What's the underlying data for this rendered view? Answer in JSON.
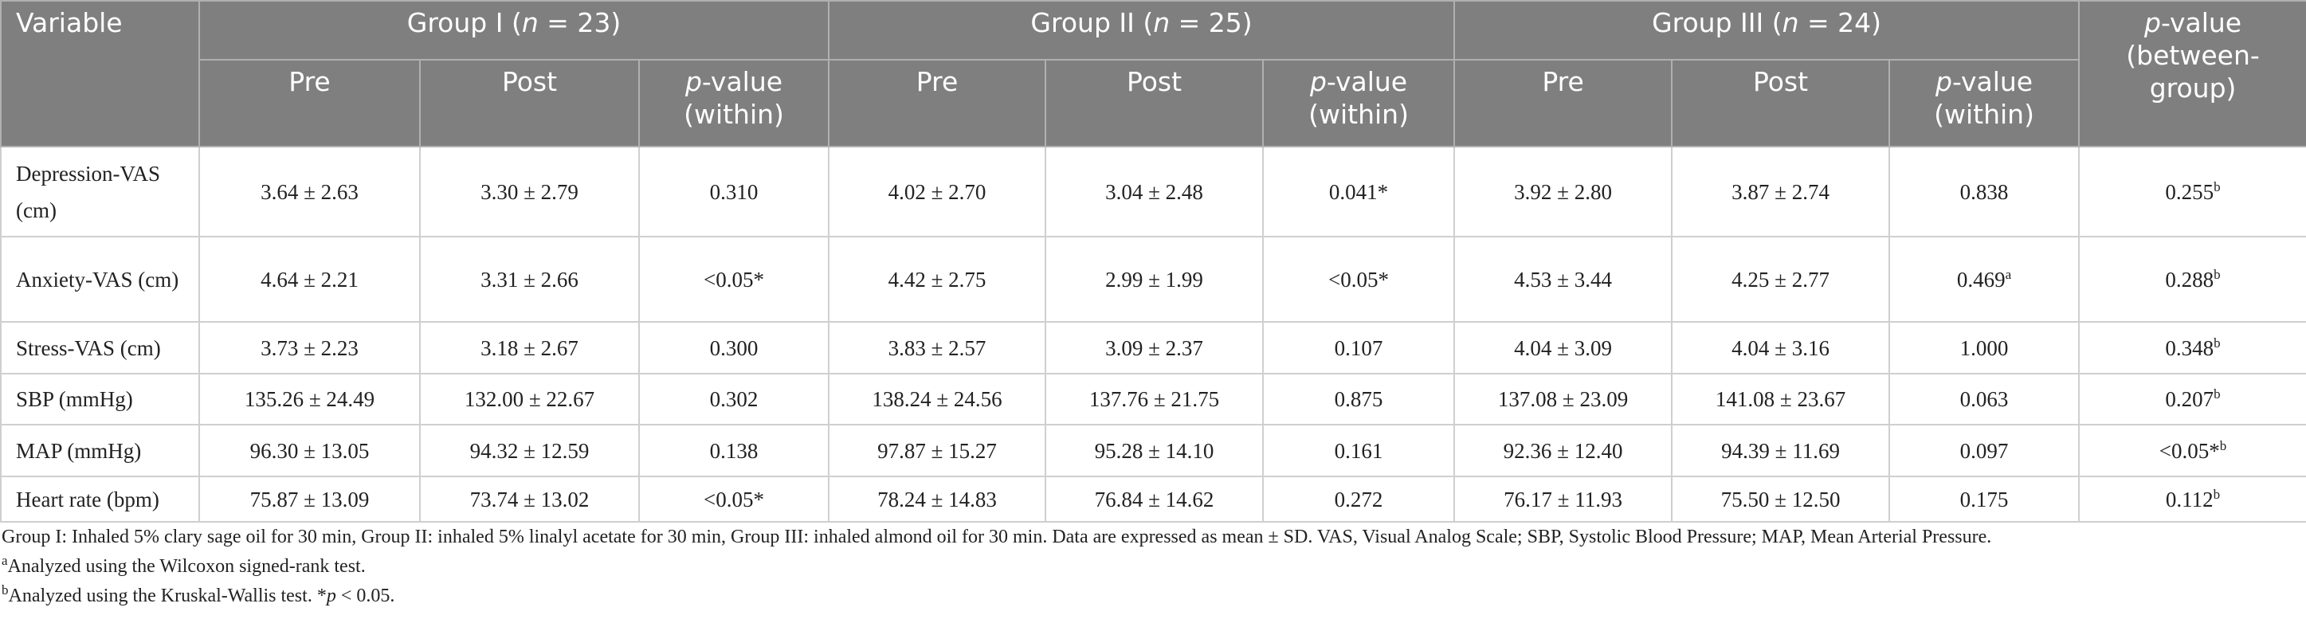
{
  "table": {
    "header": {
      "variable": "Variable",
      "groups": [
        {
          "prefix": "Group I (",
          "n": "n",
          "suffix": " = 23)",
          "pre": "Pre",
          "post": "Post",
          "p": "p",
          "p_label": "-value (within)"
        },
        {
          "prefix": "Group II (",
          "n": "n",
          "suffix": " = 25)",
          "pre": "Pre",
          "post": "Post",
          "p": "p",
          "p_label": "-value (within)"
        },
        {
          "prefix": "Group III (",
          "n": "n",
          "suffix": " = 24)",
          "pre": "Pre",
          "post": "Post",
          "p": "p",
          "p_label": "-value (within)"
        }
      ],
      "between": {
        "p": "p",
        "label": "-value (between-group)"
      }
    },
    "rows": [
      {
        "variable": "Depression-VAS (cm)",
        "cells": [
          "3.64 ± 2.63",
          "3.30 ± 2.79",
          "0.310",
          "4.02 ± 2.70",
          "3.04 ± 2.48",
          "0.041*",
          "3.92 ± 2.80",
          "3.87 ± 2.74",
          "0.838",
          {
            "text": "0.255",
            "sup": "b"
          }
        ]
      },
      {
        "variable": "Anxiety-VAS (cm)",
        "cells": [
          "4.64 ± 2.21",
          "3.31 ± 2.66",
          "<0.05*",
          "4.42 ± 2.75",
          "2.99 ± 1.99",
          "<0.05*",
          "4.53 ± 3.44",
          "4.25 ± 2.77",
          {
            "text": "0.469",
            "sup": "a"
          },
          {
            "text": "0.288",
            "sup": "b"
          }
        ]
      },
      {
        "variable": "Stress-VAS (cm)",
        "cells": [
          "3.73 ± 2.23",
          "3.18 ± 2.67",
          "0.300",
          "3.83 ± 2.57",
          "3.09 ± 2.37",
          "0.107",
          "4.04 ± 3.09",
          "4.04 ± 3.16",
          "1.000",
          {
            "text": "0.348",
            "sup": "b"
          }
        ]
      },
      {
        "variable": "SBP (mmHg)",
        "cells": [
          "135.26 ± 24.49",
          "132.00 ± 22.67",
          "0.302",
          "138.24 ± 24.56",
          "137.76 ± 21.75",
          "0.875",
          "137.08 ± 23.09",
          "141.08 ± 23.67",
          "0.063",
          {
            "text": "0.207",
            "sup": "b"
          }
        ]
      },
      {
        "variable": "MAP (mmHg)",
        "cells": [
          "96.30 ± 13.05",
          "94.32 ± 12.59",
          "0.138",
          "97.87 ± 15.27",
          "95.28 ± 14.10",
          "0.161",
          "92.36 ± 12.40",
          "94.39 ± 11.69",
          "0.097",
          {
            "text": "<0.05*",
            "sup": "b"
          }
        ]
      },
      {
        "variable": "Heart rate (bpm)",
        "cells": [
          "75.87 ± 13.09",
          "73.74 ± 13.02",
          "<0.05*",
          "78.24 ± 14.83",
          "76.84 ± 14.62",
          "0.272",
          "76.17 ± 11.93",
          "75.50 ± 12.50",
          "0.175",
          {
            "text": "0.112",
            "sup": "b"
          }
        ]
      }
    ],
    "footnotes": [
      {
        "text": "Group I: Inhaled 5% clary sage oil for 30 min, Group II: inhaled 5% linalyl acetate for 30 min, Group III: inhaled almond oil for 30 min. Data are expressed as mean ± SD. VAS, Visual Analog Scale; SBP, Systolic Blood Pressure; MAP, Mean Arterial Pressure."
      },
      {
        "sup": "a",
        "text": "Analyzed using the Wilcoxon signed-rank test."
      },
      {
        "sup": "b",
        "text": "Analyzed using the Kruskal-Wallis test. *",
        "p": "p",
        "suffix": " < 0.05."
      }
    ]
  }
}
